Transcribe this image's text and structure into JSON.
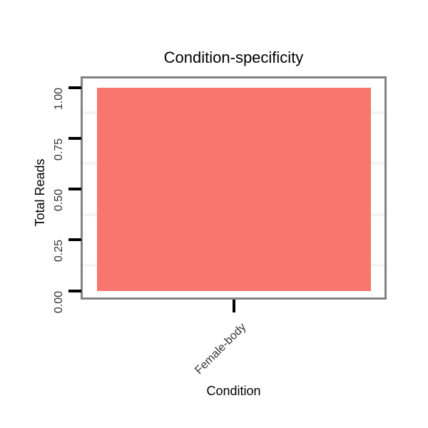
{
  "chart_data": {
    "type": "bar",
    "title": "Condition-specificity",
    "xlabel": "Condition",
    "ylabel": "Total Reads",
    "categories": [
      "Female-body"
    ],
    "values": [
      1.0
    ],
    "ylim": [
      0,
      1.05
    ],
    "yticks": [
      0,
      0.25,
      0.5,
      0.75,
      1
    ],
    "ytick_labels": [
      "0.00",
      "0.25",
      "0.50",
      "0.75",
      "1.00"
    ],
    "minor_gridlines": [
      0.125,
      0.375,
      0.625,
      0.875
    ],
    "grid": "minor-only",
    "legend_position": "none",
    "colors": {
      "bar_fill": "#F8766D",
      "panel_border": "#828282",
      "tick": "#000000",
      "tick_label": "#333333",
      "axis_title": "#000000",
      "title": "#000000",
      "minor_gridline": "#f4f4f4",
      "background": "#ffffff"
    }
  }
}
